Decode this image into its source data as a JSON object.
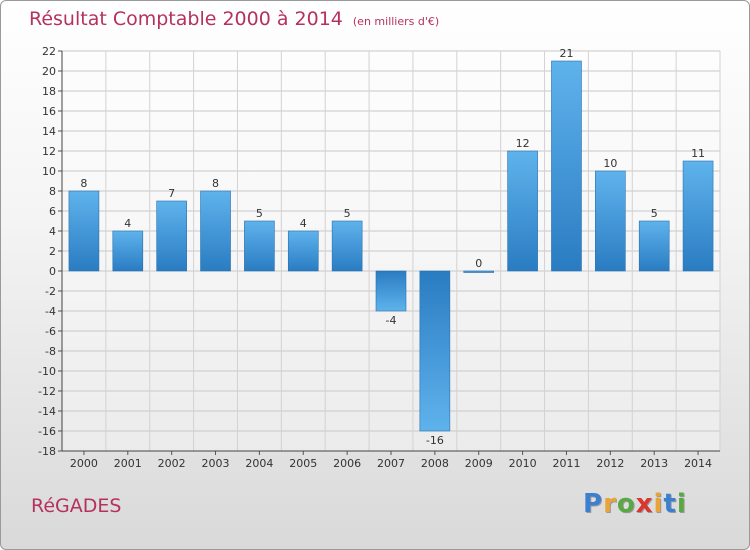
{
  "chart_data": {
    "type": "bar",
    "title": "Résultat Comptable 2000 à 2014",
    "subtitle": "(en milliers d'€)",
    "categories": [
      "2000",
      "2001",
      "2002",
      "2003",
      "2004",
      "2005",
      "2006",
      "2007",
      "2008",
      "2009",
      "2010",
      "2011",
      "2012",
      "2013",
      "2014"
    ],
    "values": [
      8,
      4,
      7,
      8,
      5,
      4,
      5,
      -4,
      -16,
      0,
      12,
      21,
      10,
      5,
      11
    ],
    "ylim": [
      -18,
      22
    ],
    "yticks": [
      22,
      20,
      18,
      16,
      14,
      12,
      10,
      8,
      6,
      4,
      2,
      0,
      -2,
      -4,
      -6,
      -8,
      -10,
      -12,
      -14,
      -16,
      -18
    ],
    "xlabel": "",
    "ylabel": "",
    "grid": true,
    "bar_color": "#3d95d8"
  },
  "commune": "RéGADES",
  "logo": {
    "letters": [
      "P",
      "r",
      "o",
      "x",
      "i",
      "t",
      "i"
    ],
    "colors": [
      "#3b7fd0",
      "#e8a33b",
      "#5aa844",
      "#d9362f",
      "#e8a33b",
      "#3b7fd0",
      "#5aa844"
    ]
  }
}
